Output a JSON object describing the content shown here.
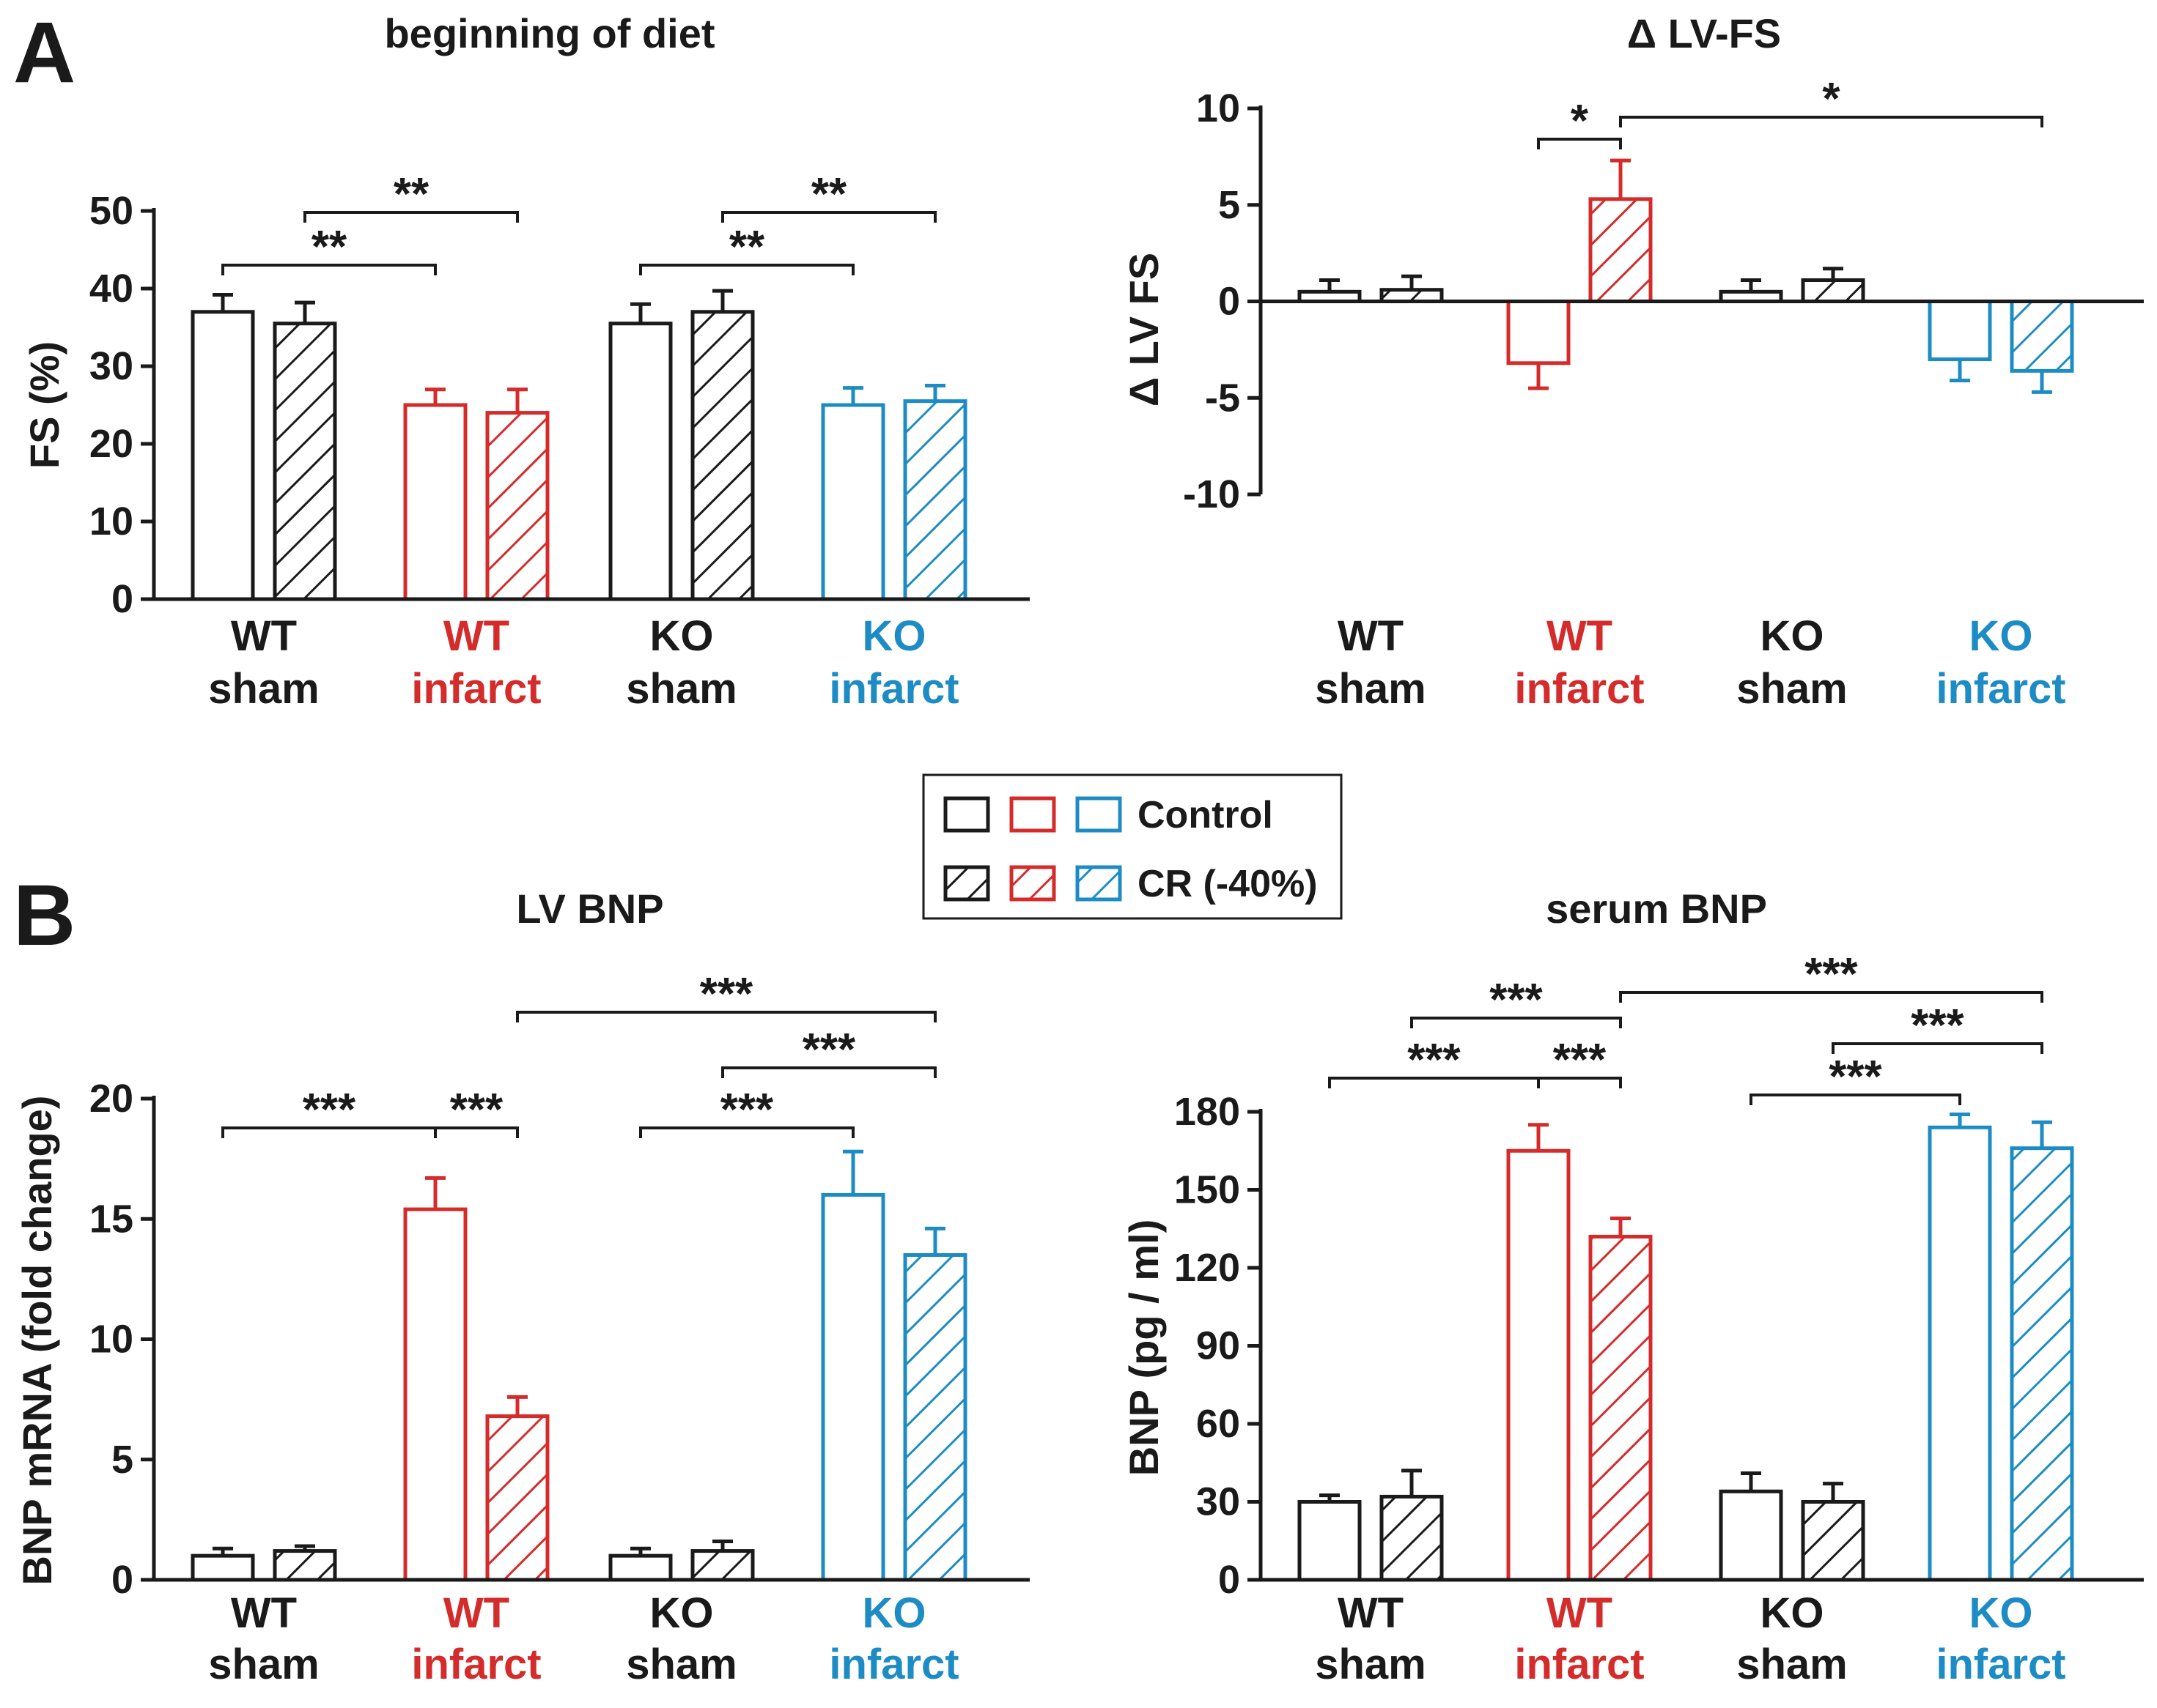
{
  "colors": {
    "wt_sham": "#1a1a1a",
    "wt_infarct": "#d42b2b",
    "ko_sham": "#1a1a1a",
    "ko_infarct": "#1d8cc4",
    "axis": "#1a1a1a"
  },
  "legend": {
    "control_label": "Control",
    "cr_label": "CR (-40%)"
  },
  "panels": [
    {
      "letter": "A"
    },
    {
      "letter": "B"
    }
  ],
  "chart_data": [
    {
      "type": "bar",
      "title": "beginning of diet",
      "ylabel": "FS (%)",
      "xlabel": "",
      "ylim": [
        0,
        50
      ],
      "yticks": [
        "0",
        "10",
        "20",
        "30",
        "40",
        "50"
      ],
      "categories": [
        {
          "line1": "WT",
          "line2": "sham",
          "color": "#1a1a1a"
        },
        {
          "line1": "WT",
          "line2": "infarct",
          "color": "#d42b2b"
        },
        {
          "line1": "KO",
          "line2": "sham",
          "color": "#1a1a1a"
        },
        {
          "line1": "KO",
          "line2": "infarct",
          "color": "#1d8cc4"
        }
      ],
      "series": [
        {
          "name": "Control",
          "values": [
            37,
            25,
            35.5,
            25
          ],
          "errors": [
            2.2,
            2,
            2.5,
            2.2
          ]
        },
        {
          "name": "CR (-40%)",
          "values": [
            35.5,
            24,
            37,
            25.5
          ],
          "errors": [
            2.7,
            3,
            2.7,
            2
          ]
        }
      ],
      "significance": [
        {
          "from": [
            0,
            0
          ],
          "to": [
            1,
            0
          ],
          "label": "**"
        },
        {
          "from": [
            0,
            1
          ],
          "to": [
            1,
            1
          ],
          "label": "**"
        },
        {
          "from": [
            2,
            0
          ],
          "to": [
            3,
            0
          ],
          "label": "**"
        },
        {
          "from": [
            2,
            1
          ],
          "to": [
            3,
            1
          ],
          "label": "**"
        }
      ]
    },
    {
      "type": "bar",
      "title": "Δ LV-FS",
      "ylabel": "Δ LV FS",
      "xlabel": "",
      "ylim": [
        -10,
        10
      ],
      "yticks": [
        "-10",
        "-5",
        "0",
        "5",
        "10"
      ],
      "categories": [
        {
          "line1": "WT",
          "line2": "sham",
          "color": "#1a1a1a"
        },
        {
          "line1": "WT",
          "line2": "infarct",
          "color": "#d42b2b"
        },
        {
          "line1": "KO",
          "line2": "sham",
          "color": "#1a1a1a"
        },
        {
          "line1": "KO",
          "line2": "infarct",
          "color": "#1d8cc4"
        }
      ],
      "series": [
        {
          "name": "Control",
          "values": [
            0.5,
            -3.2,
            0.5,
            -3
          ],
          "errors": [
            0.6,
            1.3,
            0.6,
            1.1
          ]
        },
        {
          "name": "CR (-40%)",
          "values": [
            0.6,
            5.3,
            1.1,
            -3.6
          ],
          "errors": [
            0.7,
            2,
            0.6,
            1.1
          ]
        }
      ],
      "significance": [
        {
          "from": [
            1,
            0
          ],
          "to": [
            1,
            1
          ],
          "label": "*"
        },
        {
          "from": [
            1,
            1
          ],
          "to": [
            3,
            1
          ],
          "label": "*"
        }
      ]
    },
    {
      "type": "bar",
      "title": "LV BNP",
      "ylabel": "BNP mRNA (fold change)",
      "xlabel": "",
      "ylim": [
        0,
        20
      ],
      "yticks": [
        "0",
        "5",
        "10",
        "15",
        "20"
      ],
      "categories": [
        {
          "line1": "WT",
          "line2": "sham",
          "color": "#1a1a1a"
        },
        {
          "line1": "WT",
          "line2": "infarct",
          "color": "#d42b2b"
        },
        {
          "line1": "KO",
          "line2": "sham",
          "color": "#1a1a1a"
        },
        {
          "line1": "KO",
          "line2": "infarct",
          "color": "#1d8cc4"
        }
      ],
      "series": [
        {
          "name": "Control",
          "values": [
            1,
            15.4,
            1,
            16
          ],
          "errors": [
            0.3,
            1.3,
            0.3,
            1.8
          ]
        },
        {
          "name": "CR (-40%)",
          "values": [
            1.2,
            6.8,
            1.2,
            13.5
          ],
          "errors": [
            0.2,
            0.8,
            0.4,
            1.1
          ]
        }
      ],
      "significance": [
        {
          "from": [
            0,
            0
          ],
          "to": [
            1,
            0
          ],
          "label": "***"
        },
        {
          "from": [
            1,
            0
          ],
          "to": [
            1,
            1
          ],
          "label": "***"
        },
        {
          "from": [
            2,
            0
          ],
          "to": [
            3,
            0
          ],
          "label": "***"
        },
        {
          "from": [
            2,
            1
          ],
          "to": [
            3,
            1
          ],
          "label": "***"
        },
        {
          "from": [
            1,
            1
          ],
          "to": [
            3,
            1
          ],
          "label": "***"
        }
      ]
    },
    {
      "type": "bar",
      "title": "serum BNP",
      "ylabel": "BNP (pg / ml)",
      "xlabel": "",
      "ylim": [
        0,
        180
      ],
      "yticks": [
        "0",
        "30",
        "60",
        "90",
        "120",
        "150",
        "180"
      ],
      "categories": [
        {
          "line1": "WT",
          "line2": "sham",
          "color": "#1a1a1a"
        },
        {
          "line1": "WT",
          "line2": "infarct",
          "color": "#d42b2b"
        },
        {
          "line1": "KO",
          "line2": "sham",
          "color": "#1a1a1a"
        },
        {
          "line1": "KO",
          "line2": "infarct",
          "color": "#1d8cc4"
        }
      ],
      "series": [
        {
          "name": "Control",
          "values": [
            30,
            165,
            34,
            174
          ],
          "errors": [
            2.5,
            10,
            7,
            5
          ]
        },
        {
          "name": "CR (-40%)",
          "values": [
            32,
            132,
            30,
            166
          ],
          "errors": [
            10,
            7,
            7,
            10
          ]
        }
      ],
      "significance": [
        {
          "from": [
            0,
            0
          ],
          "to": [
            1,
            0
          ],
          "label": "***"
        },
        {
          "from": [
            1,
            0
          ],
          "to": [
            1,
            1
          ],
          "label": "***"
        },
        {
          "from": [
            0,
            1
          ],
          "to": [
            1,
            1
          ],
          "label": "***"
        },
        {
          "from": [
            2,
            0
          ],
          "to": [
            3,
            0
          ],
          "label": "***"
        },
        {
          "from": [
            2,
            1
          ],
          "to": [
            3,
            1
          ],
          "label": "***"
        },
        {
          "from": [
            1,
            1
          ],
          "to": [
            3,
            1
          ],
          "label": "***"
        }
      ]
    }
  ]
}
